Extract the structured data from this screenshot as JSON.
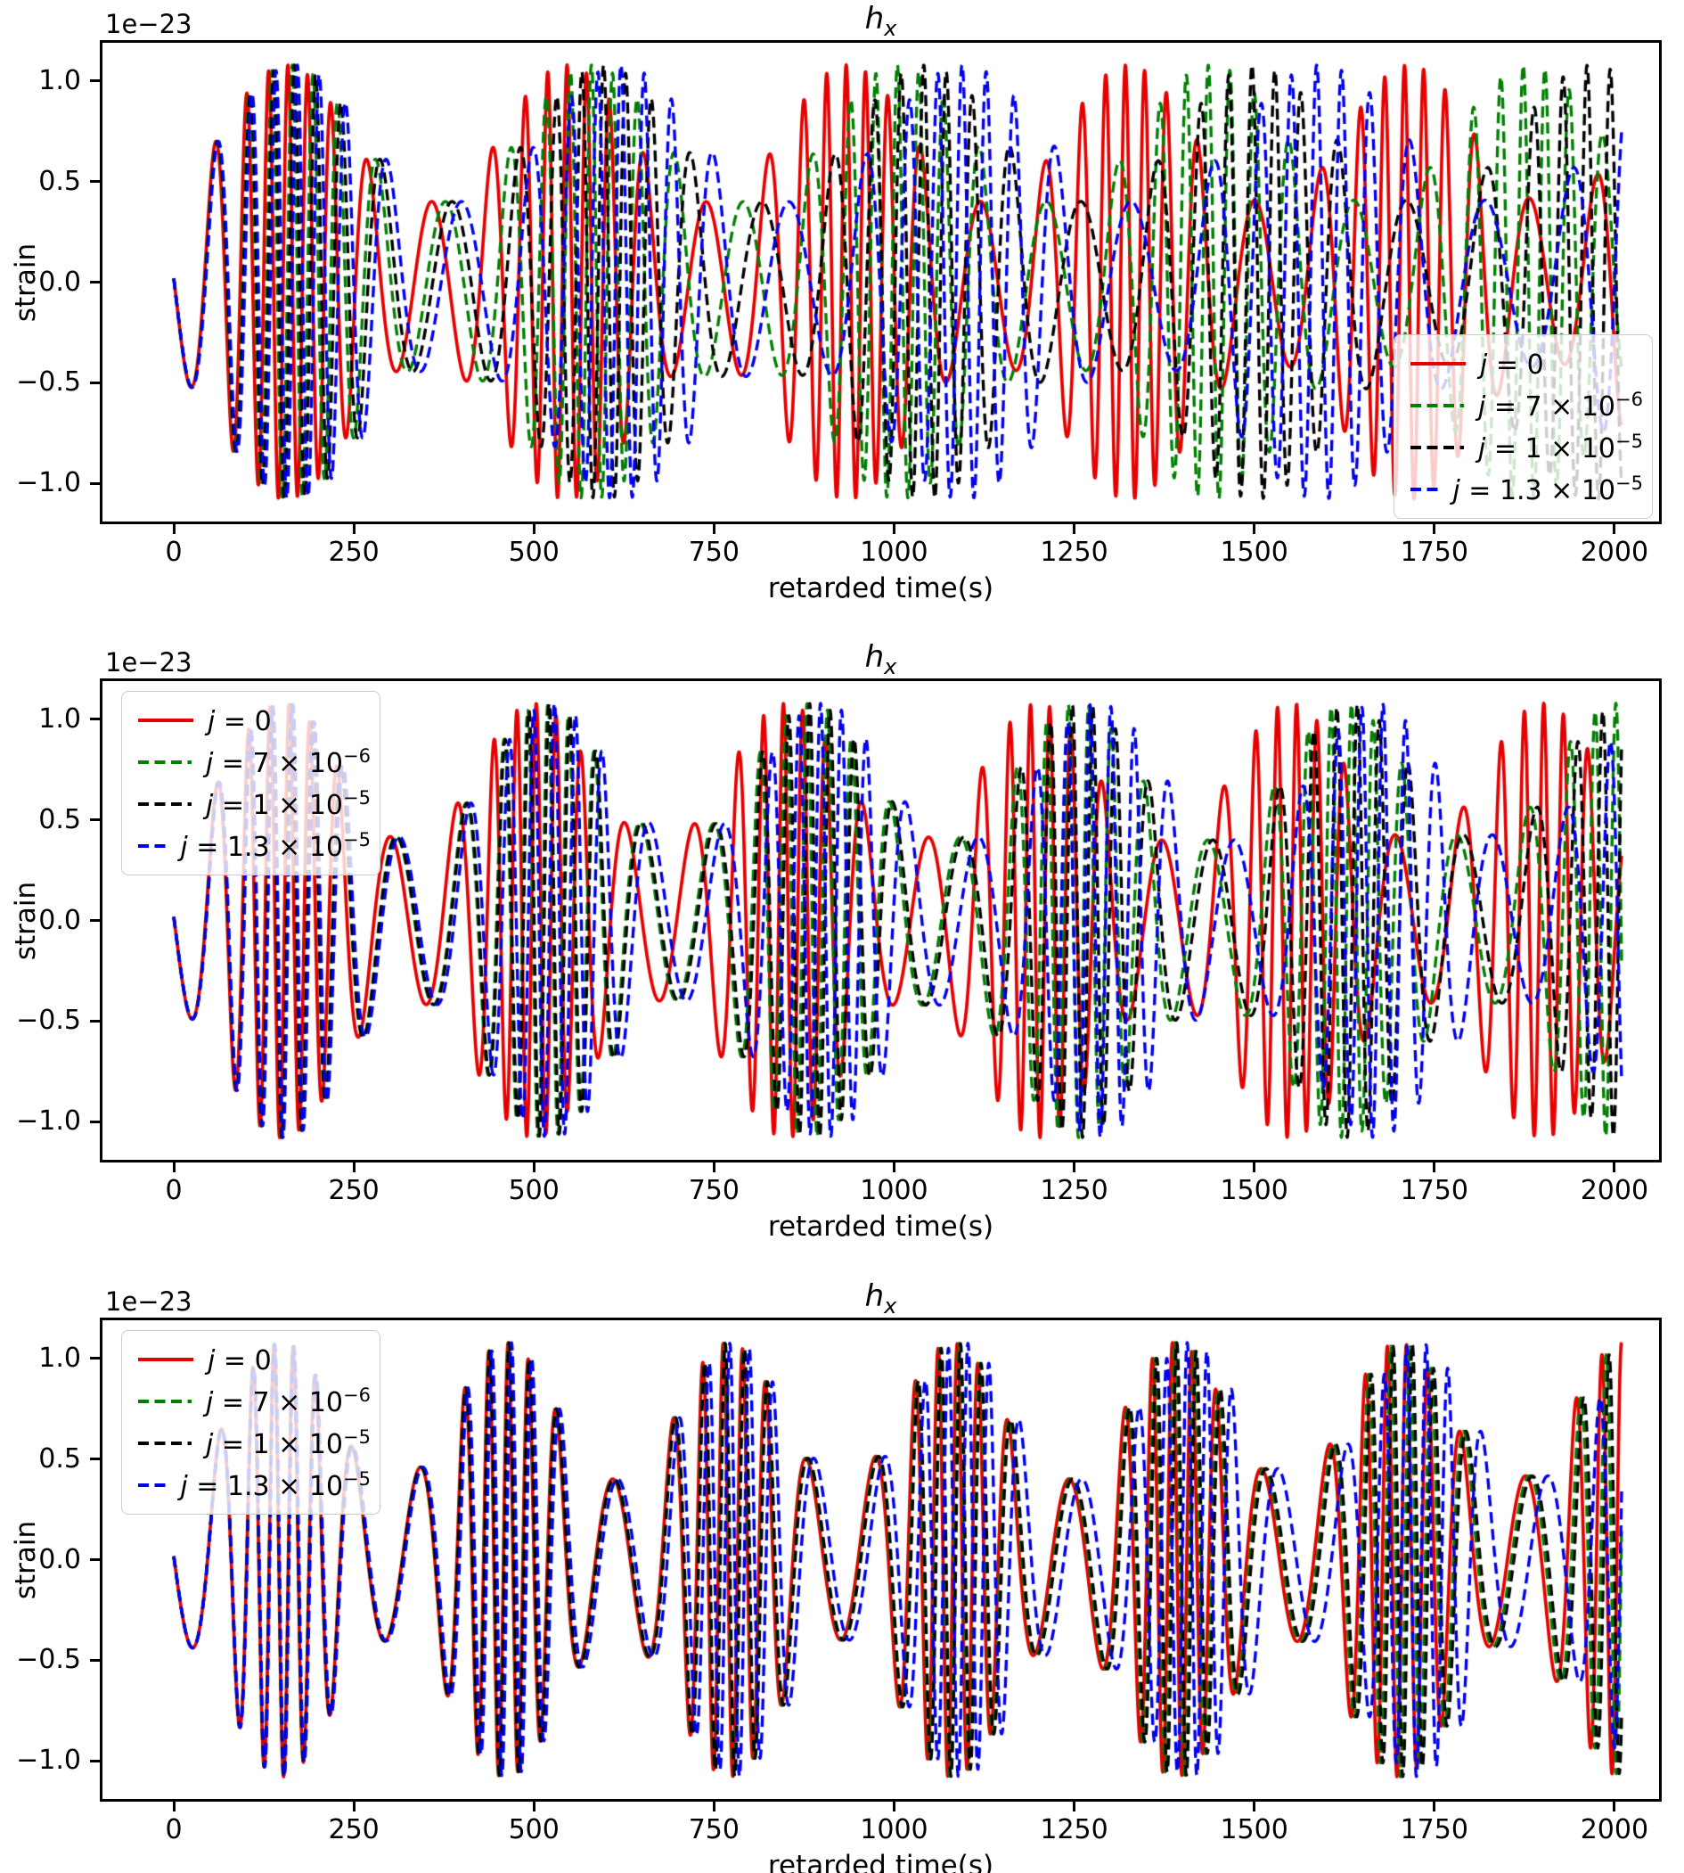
{
  "figure_background": "#ffffff",
  "chart_data": [
    {
      "type": "line",
      "title": "h_x",
      "title_parts": {
        "var": "h",
        "sub": "x"
      },
      "xlabel": "retarded time(s)",
      "ylabel": "strain",
      "y_offset_text": "1e−23",
      "xlim": [
        -99,
        2062
      ],
      "ylim": [
        -1.19,
        1.19
      ],
      "xticks": [
        0,
        250,
        500,
        750,
        1000,
        1250,
        1500,
        1750,
        2000
      ],
      "xtick_labels": [
        "0",
        "250",
        "500",
        "750",
        "1000",
        "1250",
        "1500",
        "1750",
        "2000"
      ],
      "yticks": [
        1.0,
        0.5,
        0.0,
        -0.5,
        -1.0
      ],
      "ytick_labels": [
        "1.0",
        "0.5",
        "0.0",
        "−0.5",
        "−1.0"
      ],
      "legend_loc": "lower right",
      "series": [
        {
          "name": "j = 0",
          "legend_parts": {
            "var": "j",
            "eq": " = ",
            "mant": "0",
            "sup": ""
          },
          "color": "#e60000",
          "linestyle": "solid",
          "lag_s_at_t2000": 0
        },
        {
          "name": "j = 7 × 10⁻⁶",
          "legend_parts": {
            "var": "j",
            "eq": " = ",
            "mant": "7 × 10",
            "sup": "−6"
          },
          "color": "#008000",
          "linestyle": "dashed",
          "lag_s_at_t2000": 180
        },
        {
          "name": "j = 1 × 10⁻⁵",
          "legend_parts": {
            "var": "j",
            "eq": " = ",
            "mant": "1 × 10",
            "sup": "−5"
          },
          "color": "#000000",
          "linestyle": "dashed",
          "lag_s_at_t2000": 260
        },
        {
          "name": "j = 1.3 × 10⁻⁵",
          "legend_parts": {
            "var": "j",
            "eq": " = ",
            "mant": "1.3 × 10",
            "sup": "−5"
          },
          "color": "#0000ee",
          "linestyle": "dashed",
          "lag_s_at_t2000": 363
        }
      ],
      "waveform_model": {
        "kind": "burst-modulated sinusoid (eccentric-orbit gravitational waveform)",
        "strain_scale": 1e-23,
        "t_range_s": [
          0,
          2010
        ],
        "burst_period_s": 390,
        "first_burst_center_s": 155,
        "f_min_hz": 0.0104,
        "f_max_hz": 0.038,
        "amp_min_1e-23": 0.4,
        "amp_max_1e-23": 1.08,
        "amp_exponent": 0.6,
        "phase_offset_rad": 3.1,
        "lag_exponent": 1.35
      }
    },
    {
      "type": "line",
      "title": "h_x",
      "title_parts": {
        "var": "h",
        "sub": "x"
      },
      "xlabel": "retarded time(s)",
      "ylabel": "strain",
      "y_offset_text": "1e−23",
      "xlim": [
        -99,
        2062
      ],
      "ylim": [
        -1.19,
        1.19
      ],
      "xticks": [
        0,
        250,
        500,
        750,
        1000,
        1250,
        1500,
        1750,
        2000
      ],
      "xtick_labels": [
        "0",
        "250",
        "500",
        "750",
        "1000",
        "1250",
        "1500",
        "1750",
        "2000"
      ],
      "yticks": [
        1.0,
        0.5,
        0.0,
        -0.5,
        -1.0
      ],
      "ytick_labels": [
        "1.0",
        "0.5",
        "0.0",
        "−0.5",
        "−1.0"
      ],
      "legend_loc": "upper left",
      "series": [
        {
          "name": "j = 0",
          "legend_parts": {
            "var": "j",
            "eq": " = ",
            "mant": "0",
            "sup": ""
          },
          "color": "#e60000",
          "linestyle": "solid",
          "lag_s_at_t2000": 0
        },
        {
          "name": "j = 7 × 10⁻⁶",
          "legend_parts": {
            "var": "j",
            "eq": " = ",
            "mant": "7 × 10",
            "sup": "−6"
          },
          "color": "#008000",
          "linestyle": "dashed",
          "lag_s_at_t2000": 100
        },
        {
          "name": "j = 1 × 10⁻⁵",
          "legend_parts": {
            "var": "j",
            "eq": " = ",
            "mant": "1 × 10",
            "sup": "−5"
          },
          "color": "#000000",
          "linestyle": "dashed",
          "lag_s_at_t2000": 110
        },
        {
          "name": "j = 1.3 × 10⁻⁵",
          "legend_parts": {
            "var": "j",
            "eq": " = ",
            "mant": "1.3 × 10",
            "sup": "−5"
          },
          "color": "#0000ee",
          "linestyle": "dashed",
          "lag_s_at_t2000": 152
        }
      ],
      "waveform_model": {
        "kind": "burst-modulated sinusoid (eccentric-orbit gravitational waveform)",
        "strain_scale": 1e-23,
        "t_range_s": [
          0,
          2010
        ],
        "burst_period_s": 350,
        "first_burst_center_s": 150,
        "f_min_hz": 0.0104,
        "f_max_hz": 0.038,
        "amp_min_1e-23": 0.4,
        "amp_max_1e-23": 1.08,
        "amp_exponent": 0.6,
        "phase_offset_rad": 3.1,
        "lag_exponent": 1.35
      }
    },
    {
      "type": "line",
      "title": "h_x",
      "title_parts": {
        "var": "h",
        "sub": "x"
      },
      "xlabel": "retarded time(s)",
      "ylabel": "strain",
      "y_offset_text": "1e−23",
      "xlim": [
        -99,
        2062
      ],
      "ylim": [
        -1.19,
        1.19
      ],
      "xticks": [
        0,
        250,
        500,
        750,
        1000,
        1250,
        1500,
        1750,
        2000
      ],
      "xtick_labels": [
        "0",
        "250",
        "500",
        "750",
        "1000",
        "1250",
        "1500",
        "1750",
        "2000"
      ],
      "yticks": [
        1.0,
        0.5,
        0.0,
        -0.5,
        -1.0
      ],
      "ytick_labels": [
        "1.0",
        "0.5",
        "0.0",
        "−0.5",
        "−1.0"
      ],
      "legend_loc": "upper left",
      "series": [
        {
          "name": "j = 0",
          "legend_parts": {
            "var": "j",
            "eq": " = ",
            "mant": "0",
            "sup": ""
          },
          "color": "#e60000",
          "linestyle": "solid",
          "lag_s_at_t2000": 0
        },
        {
          "name": "j = 7 × 10⁻⁶",
          "legend_parts": {
            "var": "j",
            "eq": " = ",
            "mant": "7 × 10",
            "sup": "−6"
          },
          "color": "#008000",
          "linestyle": "dashed",
          "lag_s_at_t2000": 6
        },
        {
          "name": "j = 1 × 10⁻⁵",
          "legend_parts": {
            "var": "j",
            "eq": " = ",
            "mant": "1 × 10",
            "sup": "−5"
          },
          "color": "#000000",
          "linestyle": "dashed",
          "lag_s_at_t2000": 10
        },
        {
          "name": "j = 1.3 × 10⁻⁵",
          "legend_parts": {
            "var": "j",
            "eq": " = ",
            "mant": "1.3 × 10",
            "sup": "−5"
          },
          "color": "#0000ee",
          "linestyle": "dashed",
          "lag_s_at_t2000": 33
        }
      ],
      "waveform_model": {
        "kind": "burst-modulated sinusoid (eccentric-orbit gravitational waveform)",
        "strain_scale": 1e-23,
        "t_range_s": [
          0,
          2010
        ],
        "burst_period_s": 310,
        "first_burst_center_s": 150,
        "f_min_hz": 0.0104,
        "f_max_hz": 0.038,
        "amp_min_1e-23": 0.4,
        "amp_max_1e-23": 1.08,
        "amp_exponent": 0.6,
        "phase_offset_rad": 3.1,
        "lag_exponent": 1.35
      }
    }
  ]
}
